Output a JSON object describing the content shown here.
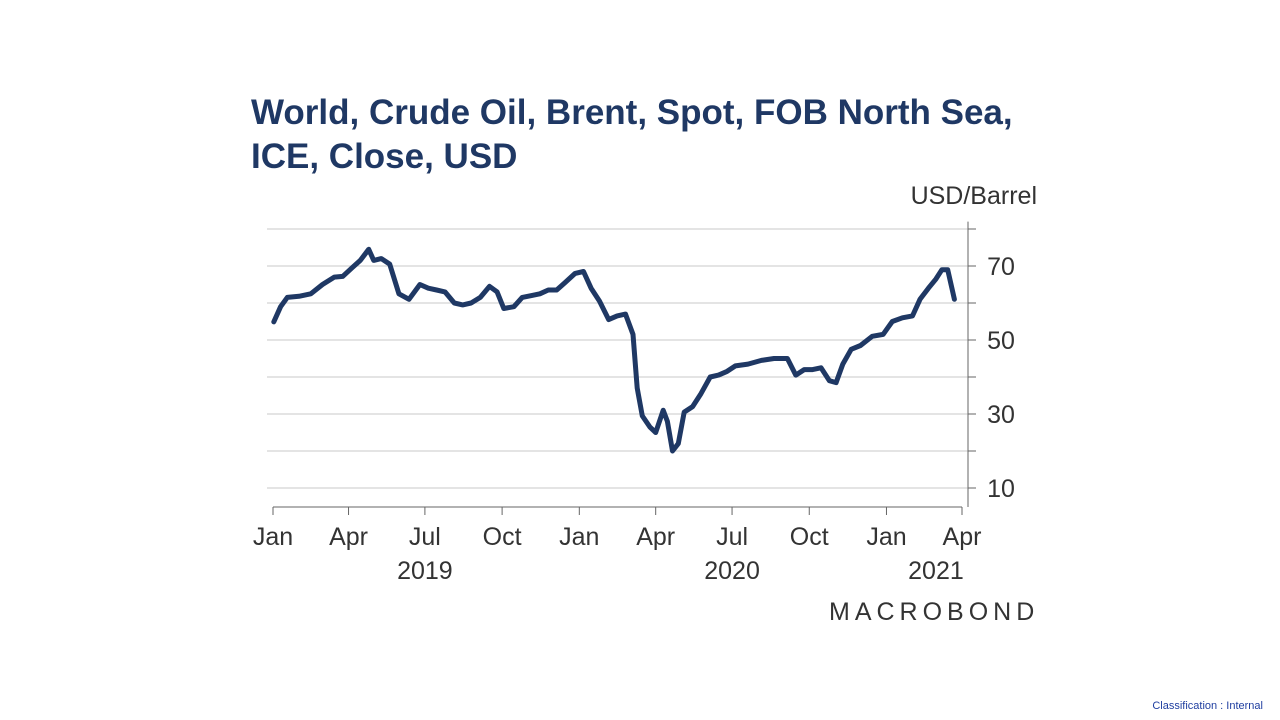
{
  "chart_data": {
    "type": "line",
    "title": "World, Crude Oil, Brent, Spot, FOB North Sea, ICE, Close, USD",
    "ylabel": "USD/Barrel",
    "ylim": [
      5,
      82
    ],
    "yticks": [
      10,
      30,
      50,
      70
    ],
    "y_gridlines": [
      20,
      30,
      40,
      50,
      60,
      70,
      80
    ],
    "grid": true,
    "x_range": [
      "2019-01-01",
      "2021-04-01"
    ],
    "x_ticks": [
      {
        "date": "2019-01-01",
        "label": "Jan"
      },
      {
        "date": "2019-04-01",
        "label": "Apr"
      },
      {
        "date": "2019-07-01",
        "label": "Jul"
      },
      {
        "date": "2019-10-01",
        "label": "Oct"
      },
      {
        "date": "2020-01-01",
        "label": "Jan"
      },
      {
        "date": "2020-04-01",
        "label": "Apr"
      },
      {
        "date": "2020-07-01",
        "label": "Jul"
      },
      {
        "date": "2020-10-01",
        "label": "Oct"
      },
      {
        "date": "2021-01-01",
        "label": "Jan"
      },
      {
        "date": "2021-04-01",
        "label": "Apr"
      }
    ],
    "year_labels": [
      {
        "date": "2019-07-01",
        "label": "2019"
      },
      {
        "date": "2020-07-01",
        "label": "2020"
      },
      {
        "date": "2021-03-01",
        "label": "2021"
      }
    ],
    "series": [
      {
        "color": "#1f3864",
        "x": [
          "2019-01-02",
          "2019-01-10",
          "2019-01-18",
          "2019-02-01",
          "2019-02-15",
          "2019-03-01",
          "2019-03-15",
          "2019-03-25",
          "2019-04-05",
          "2019-04-15",
          "2019-04-25",
          "2019-05-01",
          "2019-05-10",
          "2019-05-20",
          "2019-05-31",
          "2019-06-12",
          "2019-06-25",
          "2019-07-05",
          "2019-07-15",
          "2019-07-25",
          "2019-08-05",
          "2019-08-15",
          "2019-08-25",
          "2019-09-05",
          "2019-09-16",
          "2019-09-25",
          "2019-10-03",
          "2019-10-15",
          "2019-10-25",
          "2019-11-05",
          "2019-11-15",
          "2019-11-25",
          "2019-12-05",
          "2019-12-15",
          "2019-12-27",
          "2020-01-06",
          "2020-01-15",
          "2020-01-25",
          "2020-02-05",
          "2020-02-15",
          "2020-02-25",
          "2020-03-05",
          "2020-03-10",
          "2020-03-16",
          "2020-03-25",
          "2020-04-01",
          "2020-04-10",
          "2020-04-15",
          "2020-04-21",
          "2020-04-28",
          "2020-05-05",
          "2020-05-15",
          "2020-05-25",
          "2020-06-05",
          "2020-06-15",
          "2020-06-25",
          "2020-07-05",
          "2020-07-20",
          "2020-08-05",
          "2020-08-20",
          "2020-09-05",
          "2020-09-15",
          "2020-09-25",
          "2020-10-05",
          "2020-10-15",
          "2020-10-25",
          "2020-11-02",
          "2020-11-10",
          "2020-11-20",
          "2020-12-01",
          "2020-12-15",
          "2020-12-28",
          "2021-01-08",
          "2021-01-20",
          "2021-02-01",
          "2021-02-10",
          "2021-02-20",
          "2021-03-01",
          "2021-03-08",
          "2021-03-15",
          "2021-03-20",
          "2021-03-23"
        ],
        "y": [
          54.9,
          59.0,
          61.5,
          61.8,
          62.5,
          65.0,
          67.0,
          67.2,
          69.5,
          71.5,
          74.5,
          71.5,
          72.0,
          70.5,
          62.5,
          61.0,
          65.0,
          64.0,
          63.5,
          63.0,
          60.0,
          59.5,
          60.0,
          61.5,
          64.5,
          63.0,
          58.5,
          59.0,
          61.5,
          62.0,
          62.5,
          63.5,
          63.5,
          65.5,
          68.0,
          68.5,
          64.0,
          60.5,
          55.5,
          56.5,
          57.0,
          51.5,
          37.0,
          29.5,
          26.5,
          25.0,
          31.0,
          28.0,
          20.0,
          22.0,
          30.5,
          32.0,
          35.5,
          40.0,
          40.5,
          41.5,
          43.0,
          43.5,
          44.5,
          45.0,
          45.0,
          40.5,
          42.0,
          42.0,
          42.5,
          39.0,
          38.5,
          43.5,
          47.5,
          48.5,
          51.0,
          51.5,
          55.0,
          56.0,
          56.5,
          61.0,
          64.0,
          66.5,
          69.0,
          69.0,
          64.0,
          61.0
        ]
      }
    ]
  },
  "branding": {
    "logo_text": "MACROBOND"
  },
  "footer": {
    "classification": "Classification : Internal"
  }
}
